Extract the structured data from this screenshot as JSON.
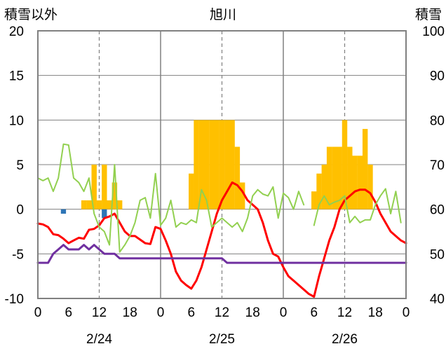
{
  "chart_data": {
    "type": "bar",
    "title": "旭川",
    "ylabel_left": "積雪以外",
    "ylabel_right": "積雪",
    "ylim_left": [
      -10,
      20
    ],
    "ylim_right": [
      40,
      100
    ],
    "yticks_left": [
      "20",
      "15",
      "10",
      "5",
      "0",
      "-5",
      "-10"
    ],
    "yticks_right": [
      "100",
      "90",
      "80",
      "70",
      "60",
      "50",
      "40"
    ],
    "hour_ticks": [
      "0",
      "6",
      "12",
      "18",
      "0",
      "6",
      "12",
      "18",
      "0",
      "6",
      "12",
      "18",
      "0"
    ],
    "dates": [
      "2/24",
      "2/25",
      "2/26"
    ],
    "xlim_hours": [
      0,
      72
    ],
    "colors": {
      "snowfall_bars": "#FFC000",
      "precip_bars": "#2E75B6",
      "temperature": "#FF0000",
      "green_series": "#92D050",
      "snow_depth": "#7030A0",
      "frame": "#808080"
    },
    "series": [
      {
        "axis": "left",
        "kind": "bar",
        "color": "#FFC000",
        "x": [
          9,
          10,
          11,
          12,
          13,
          14,
          15,
          16,
          30,
          31,
          32,
          33,
          34,
          35,
          36,
          37,
          38,
          39,
          40,
          54,
          55,
          56,
          57,
          58,
          59,
          60,
          61,
          62,
          63,
          64,
          65,
          66
        ],
        "values": [
          1,
          1,
          5,
          1,
          5,
          1,
          3,
          1,
          4,
          10,
          10,
          10,
          10,
          10,
          10,
          10,
          10,
          7,
          3,
          2,
          4,
          5,
          7,
          7,
          7,
          10,
          7,
          6,
          6,
          9,
          5,
          0
        ]
      },
      {
        "axis": "left",
        "kind": "bar",
        "color": "#2E75B6",
        "x": [
          5,
          13
        ],
        "values": [
          -0.5,
          -1
        ]
      },
      {
        "axis": "left",
        "kind": "line",
        "color": "#FF0000",
        "x": [
          0,
          1,
          2,
          3,
          4,
          5,
          6,
          7,
          8,
          9,
          10,
          11,
          12,
          13,
          14,
          15,
          16,
          17,
          18,
          19,
          20,
          21,
          22,
          23,
          24,
          25,
          26,
          27,
          28,
          29,
          30,
          31,
          32,
          33,
          34,
          35,
          36,
          37,
          38,
          39,
          40,
          41,
          42,
          43,
          44,
          45,
          46,
          47,
          48,
          49,
          50,
          51,
          52,
          53,
          54,
          55,
          56,
          57,
          58,
          59,
          60,
          61,
          62,
          63,
          64,
          65,
          66,
          67,
          68,
          69,
          70,
          71,
          72
        ],
        "values": [
          -1.6,
          -1.7,
          -2.0,
          -2.8,
          -2.9,
          -3.3,
          -3.8,
          -3.5,
          -3.2,
          -3.3,
          -2.3,
          -2.2,
          -1.8,
          -1.0,
          -0.8,
          -0.5,
          -1.5,
          -2.5,
          -3.0,
          -3.0,
          -3.4,
          -3.8,
          -3.9,
          -2.0,
          -2.2,
          -3.5,
          -5.0,
          -7.0,
          -8.0,
          -8.5,
          -8.9,
          -8.0,
          -6.5,
          -4.5,
          -2.5,
          -0.5,
          1.0,
          2.0,
          3.0,
          2.7,
          2.0,
          1.0,
          0.5,
          0.0,
          -1.5,
          -3.5,
          -5.0,
          -5.3,
          -6.5,
          -7.5,
          -8.0,
          -8.5,
          -9.0,
          -9.5,
          -9.8,
          -7.5,
          -5.5,
          -3.5,
          -2.0,
          0.0,
          1.0,
          1.5,
          2.0,
          2.2,
          2.2,
          1.8,
          0.8,
          -0.5,
          -1.5,
          -2.5,
          -3.0,
          -3.5,
          -3.8
        ]
      },
      {
        "axis": "left",
        "kind": "line",
        "color": "#92D050",
        "x": [
          0,
          1,
          2,
          3,
          4,
          5,
          6,
          7,
          8,
          9,
          10,
          11,
          12,
          13,
          14,
          15,
          16,
          17,
          18,
          19,
          20,
          21,
          22,
          23,
          24,
          25,
          26,
          27,
          28,
          29,
          30,
          31,
          32,
          33,
          34,
          35,
          36,
          37,
          38,
          39,
          40,
          41,
          42,
          43,
          44,
          45,
          46,
          47,
          48,
          49,
          50,
          51,
          52,
          53,
          54,
          55,
          56,
          57,
          58,
          59,
          60,
          61,
          62,
          63,
          64,
          65,
          66,
          67,
          68,
          69,
          70,
          71,
          72
        ],
        "values": [
          3.5,
          3.2,
          3.5,
          2.0,
          3.5,
          7.3,
          7.2,
          3.5,
          3.0,
          2.0,
          3.5,
          -0.5,
          -2.0,
          -2.5,
          -4.0,
          5.0,
          -4.8,
          -4.0,
          -3.0,
          -1.5,
          1.0,
          1.3,
          -1.0,
          4.0,
          -1.8,
          -1.0,
          1.0,
          -2.0,
          -1.5,
          -1.7,
          -1.2,
          -1.5,
          2.2,
          1.0,
          -2.0,
          -1.5,
          -1.0,
          -1.5,
          -2.0,
          -1.5,
          -2.5,
          -1.0,
          1.5,
          2.2,
          1.7,
          1.5,
          2.5,
          -1.0,
          1.8,
          1.3,
          0.0,
          2.0,
          0.5,
          null,
          -1.8,
          0.5,
          1.5,
          0.5,
          0.8,
          1.0,
          1.5,
          -1.5,
          -0.8,
          -1.5,
          -1.2,
          -1.2,
          0.5,
          1.5,
          2.3,
          -0.5,
          2.0,
          -1.5,
          null
        ]
      },
      {
        "axis": "right",
        "kind": "line",
        "color": "#7030A0",
        "x": [
          0,
          2,
          3,
          4,
          5,
          6,
          7,
          8,
          9,
          10,
          11,
          12,
          13,
          14,
          15,
          16,
          17,
          36,
          37,
          72
        ],
        "values": [
          48,
          48,
          50,
          51,
          52,
          51,
          51,
          51,
          52,
          51,
          52,
          51,
          50,
          50,
          50,
          49,
          49,
          49,
          48,
          48
        ]
      }
    ]
  }
}
